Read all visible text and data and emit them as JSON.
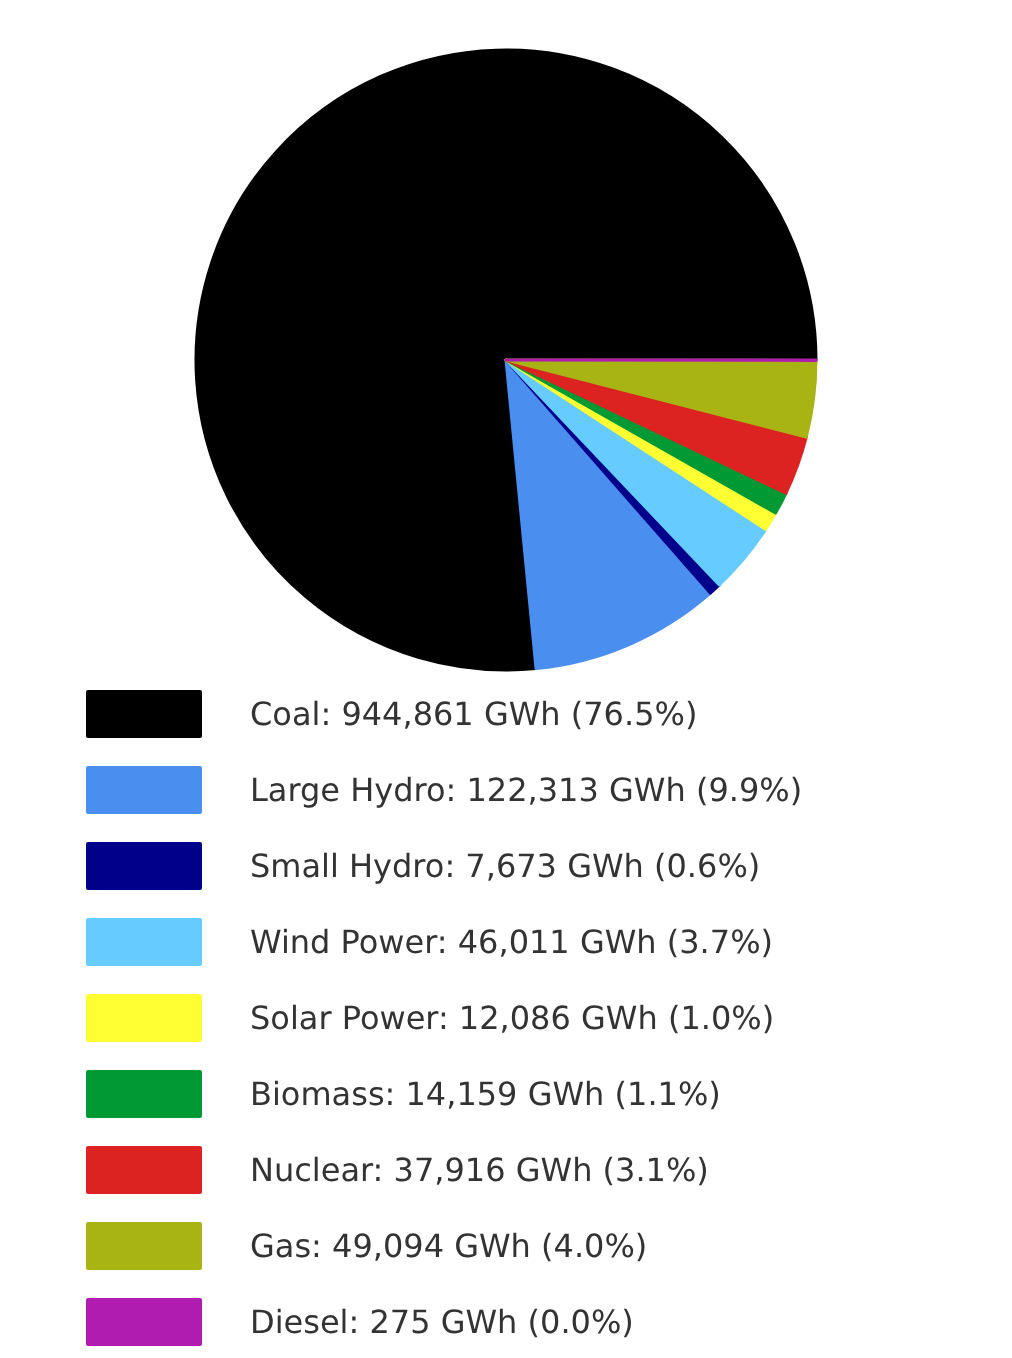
{
  "chart_data": {
    "type": "pie",
    "categories": [
      "Coal: 944,861 GWh (76.5%)",
      "Large Hydro: 122,313 GWh (9.9%)",
      "Small Hydro: 7,673 GWh (0.6%)",
      "Wind Power: 46,011 GWh (3.7%)",
      "Solar Power: 12,086 GWh (1.0%)",
      "Biomass: 14,159 GWh (1.1%)",
      "Nuclear: 37,916 GWh (3.1%)",
      "Gas: 49,094 GWh (4.0%)",
      "Diesel: 275 GWh (0.0%)"
    ],
    "values": [
      944861,
      122313,
      7673,
      46011,
      12086,
      14159,
      37916,
      49094,
      275
    ],
    "colors": [
      "#000000",
      "#4a8ff0",
      "#00008b",
      "#66ccff",
      "#ffff33",
      "#009933",
      "#dd2222",
      "#a8b414",
      "#b01cb0"
    ],
    "legend": "bottom"
  }
}
